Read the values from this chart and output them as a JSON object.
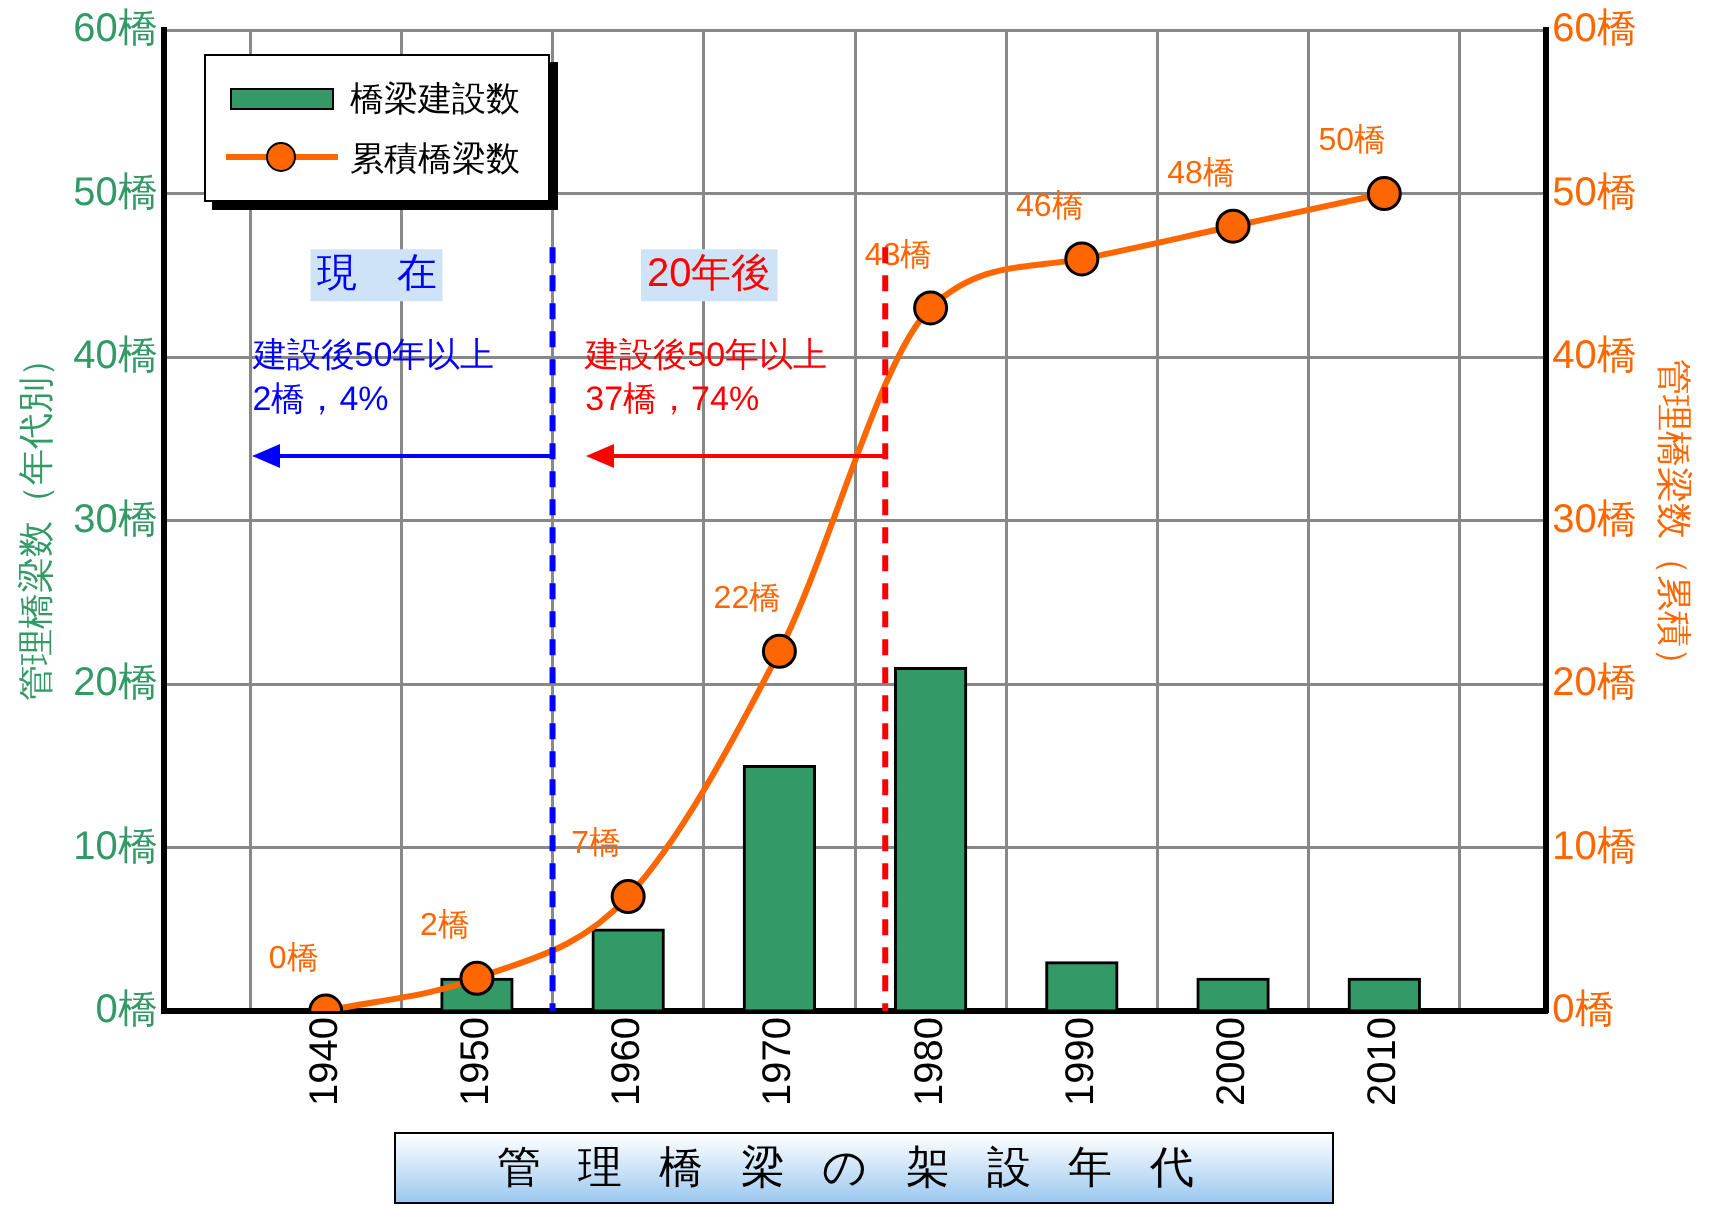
{
  "chart_data": {
    "type": "bar",
    "x": [
      1940,
      1950,
      1960,
      1970,
      1980,
      1990,
      2000,
      2010
    ],
    "xlim": [
      1935,
      2015
    ],
    "xticks": [
      1940,
      1950,
      1960,
      1970,
      1980,
      1990,
      2000,
      2010
    ],
    "ylim": [
      0,
      60
    ],
    "yticks": [
      {
        "value": 0,
        "label": "0橋"
      },
      {
        "value": 10,
        "label": "10橋"
      },
      {
        "value": 20,
        "label": "20橋"
      },
      {
        "value": 30,
        "label": "30橋"
      },
      {
        "value": 40,
        "label": "40橋"
      },
      {
        "value": 50,
        "label": "50橋"
      },
      {
        "value": 60,
        "label": "60橋"
      }
    ],
    "y2lim": [
      0,
      60
    ],
    "y2ticks": [
      {
        "value": 0,
        "label": "0橋"
      },
      {
        "value": 10,
        "label": "10橋"
      },
      {
        "value": 20,
        "label": "20橋"
      },
      {
        "value": 30,
        "label": "30橋"
      },
      {
        "value": 40,
        "label": "40橋"
      },
      {
        "value": 50,
        "label": "50橋"
      },
      {
        "value": 60,
        "label": "60橋"
      }
    ],
    "xlabel": "管理橋梁の架設年代",
    "ylabel": "管理橋梁数（年代別）",
    "y2label": "管理橋梁数（累積）",
    "grid": true,
    "legend": "top left",
    "marker": "circle",
    "series": [
      {
        "name": "橋梁建設数",
        "color": "#339966",
        "values": [
          0,
          2,
          5,
          15,
          21,
          3,
          2,
          2
        ]
      },
      {
        "name": "累積橋梁数",
        "type": "line",
        "axis": "y2",
        "color": "#ff6600",
        "values": [
          0,
          2,
          7,
          22,
          43,
          46,
          48,
          50
        ],
        "value_labels": [
          "0橋",
          "2橋",
          "7橋",
          "22橋",
          "43橋",
          "46橋",
          "48橋",
          "50橋"
        ]
      }
    ],
    "ref_lines": [
      {
        "axis": "x",
        "value": 1955,
        "label": "現　在",
        "color": "#0000ff",
        "line_style": "dashed"
      },
      {
        "axis": "x",
        "value": 1977,
        "label": "20年後",
        "color": "#ff0000",
        "line_style": "dashed"
      }
    ],
    "annotations": [
      "建設後50年以上\n2橋，4%",
      "建設後50年以上\n37橋，74%"
    ]
  }
}
